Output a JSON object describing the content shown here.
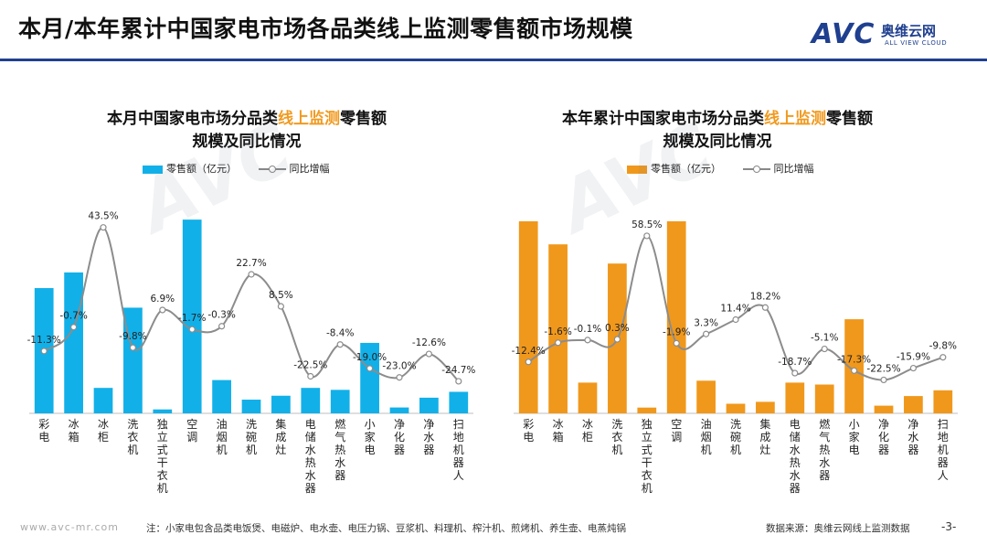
{
  "page": {
    "title": "本月/本年累计中国家电市场各品类线上监测零售额市场规模",
    "logo_mark": "AVC",
    "logo_cn": "奥维云网",
    "logo_en": "ALL VIEW CLOUD",
    "footer_url": "www.avc-mr.com",
    "footer_note": "注：小家电包含品类电饭煲、电磁炉、电水壶、电压力锅、豆浆机、料理机、榨汁机、煎烤机、养生壶、电蒸炖锅",
    "footer_source": "数据来源：奥维云网线上监测数据",
    "page_number": "-3-"
  },
  "colors": {
    "left_bar": "#12b0e8",
    "right_bar": "#f0981c",
    "line": "#8c8c8c",
    "title_rule": "#1f3f8f",
    "highlight": "#f09a1f"
  },
  "chart_data": [
    {
      "type": "bar",
      "title_pre": "本月中国家电市场分品类",
      "title_highlight": "线上监测",
      "title_post": "零售额",
      "title_line2": "规模及同比情况",
      "categories": [
        "彩电",
        "冰箱",
        "冰柜",
        "洗衣机",
        "独立式干衣机",
        "空调",
        "油烟机",
        "洗碗机",
        "集成灶",
        "电储水热水器",
        "燃气热水器",
        "小家电",
        "净化器",
        "净水器",
        "扫地机器人"
      ],
      "series": [
        {
          "name": "零售额（亿元）",
          "kind": "bar",
          "values": [
            64,
            72,
            13,
            54,
            2,
            99,
            17,
            7,
            9,
            13,
            12,
            36,
            3,
            8,
            11
          ]
        },
        {
          "name": "同比增幅",
          "kind": "line",
          "values": [
            -11.3,
            -0.7,
            43.5,
            -9.8,
            6.9,
            -1.7,
            -0.3,
            22.7,
            8.5,
            -22.5,
            -8.4,
            -19.0,
            -23.0,
            -12.6,
            -24.7
          ],
          "labels": [
            "-11.3%",
            "-0.7%",
            "43.5%",
            "-9.8%",
            "6.9%",
            "-1.7%",
            "-0.3%",
            "22.7%",
            "8.5%",
            "-22.5%",
            "-8.4%",
            "-19.0%",
            "-23.0%",
            "-12.6%",
            "-24.7%"
          ]
        }
      ]
    },
    {
      "type": "bar",
      "title_pre": "本年累计中国家电市场分品类",
      "title_highlight": "线上监测",
      "title_post": "零售额",
      "title_line2": "规模及同比情况",
      "categories": [
        "彩电",
        "冰箱",
        "冰柜",
        "洗衣机",
        "独立式干衣机",
        "空调",
        "油烟机",
        "洗碗机",
        "集成灶",
        "电储水热水器",
        "燃气热水器",
        "小家电",
        "净化器",
        "净水器",
        "扫地机器人"
      ],
      "series": [
        {
          "name": "零售额（亿元）",
          "kind": "bar",
          "values": [
            100,
            88,
            16,
            78,
            3,
            100,
            17,
            5,
            6,
            16,
            15,
            49,
            4,
            9,
            12
          ]
        },
        {
          "name": "同比增幅",
          "kind": "line",
          "values": [
            -12.4,
            -1.6,
            -0.1,
            0.3,
            58.5,
            -1.9,
            3.3,
            11.4,
            18.2,
            -18.7,
            -5.1,
            -17.3,
            -22.5,
            -15.9,
            -9.8
          ],
          "labels": [
            "-12.4%",
            "-1.6%",
            "-0.1%",
            "0.3%",
            "58.5%",
            "-1.9%",
            "3.3%",
            "11.4%",
            "18.2%",
            "-18.7%",
            "-5.1%",
            "-17.3%",
            "-22.5%",
            "-15.9%",
            "-9.8%"
          ]
        }
      ]
    }
  ]
}
